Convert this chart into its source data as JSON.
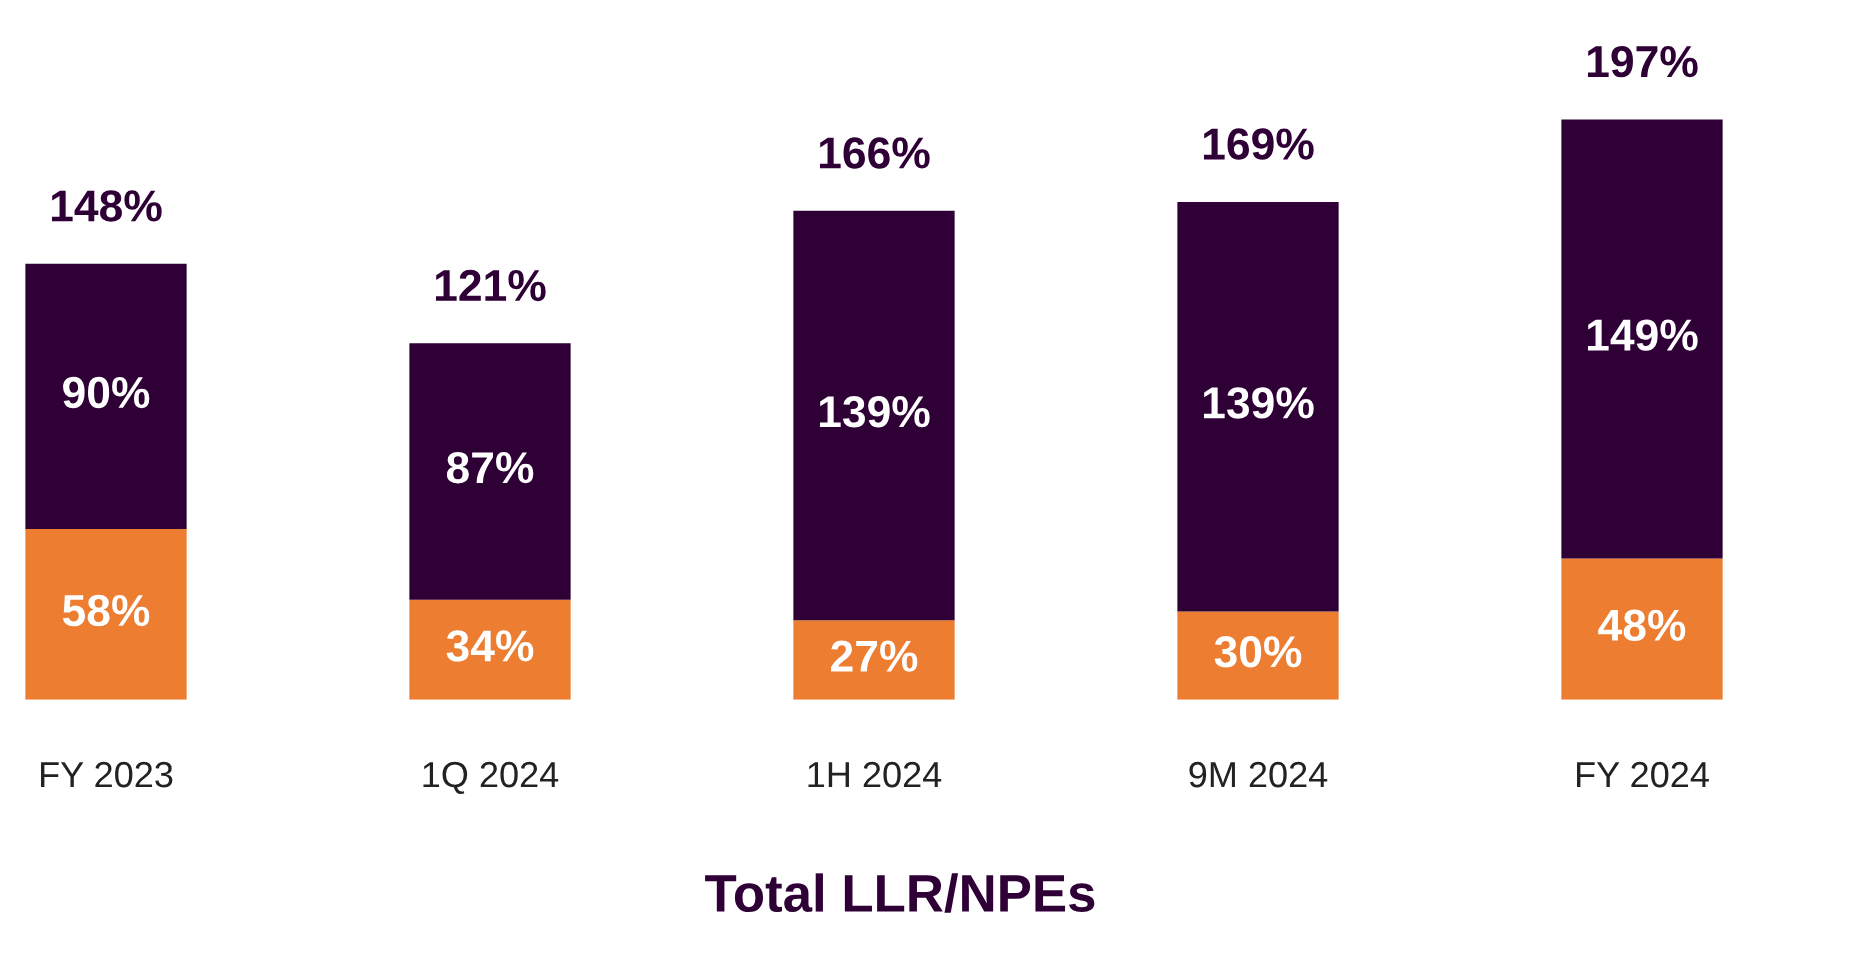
{
  "chart_data": {
    "type": "bar",
    "title": "Total LLR/NPEs",
    "stacked": true,
    "categories": [
      "FY 2023",
      "1Q 2024",
      "1H 2024",
      "9M 2024",
      "FY 2024"
    ],
    "series": [
      {
        "color": "#ed7d31",
        "values": [
          58,
          34,
          27,
          30,
          48
        ],
        "value_labels": [
          "58%",
          "34%",
          "27%",
          "30%",
          "48%"
        ]
      },
      {
        "color": "#2e0036",
        "values": [
          90,
          87,
          139,
          139,
          149
        ],
        "value_labels": [
          "90%",
          "87%",
          "139%",
          "139%",
          "149%"
        ]
      }
    ],
    "totals": [
      "148%",
      "121%",
      "166%",
      "169%",
      "197%"
    ]
  }
}
